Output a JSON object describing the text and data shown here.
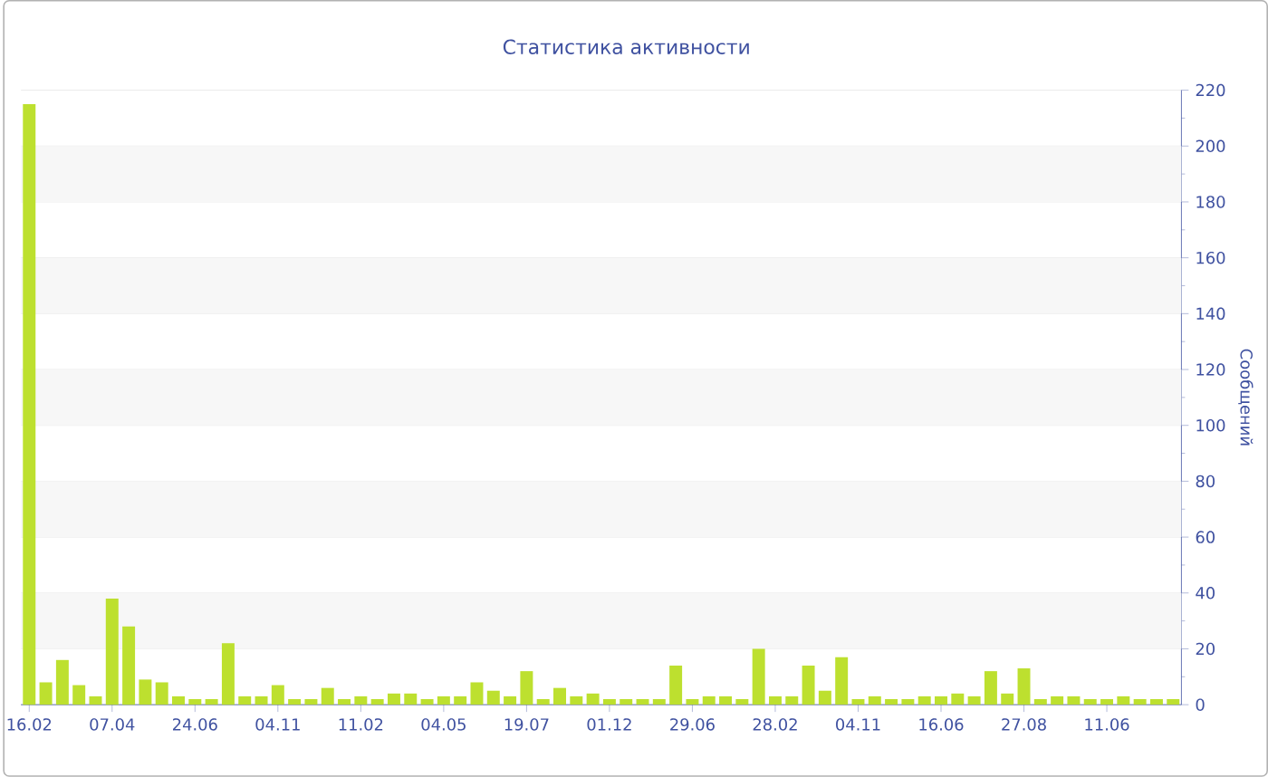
{
  "chart_data": {
    "type": "bar",
    "title": "Статистика активности",
    "ylabel": "Сообщений",
    "categories": [
      "16.02",
      null,
      null,
      null,
      null,
      "07.04",
      null,
      null,
      null,
      null,
      "24.06",
      null,
      null,
      null,
      null,
      "04.11",
      null,
      null,
      null,
      null,
      "11.02",
      null,
      null,
      null,
      null,
      "04.05",
      null,
      null,
      null,
      null,
      "19.07",
      null,
      null,
      null,
      null,
      "01.12",
      null,
      null,
      null,
      null,
      "29.06",
      null,
      null,
      null,
      null,
      "28.02",
      null,
      null,
      null,
      null,
      "04.11",
      null,
      null,
      null,
      null,
      "16.06",
      null,
      null,
      null,
      null,
      "27.08",
      null,
      null,
      null,
      null,
      "11.06",
      null,
      null,
      null,
      null
    ],
    "values": [
      215,
      8,
      16,
      7,
      3,
      38,
      28,
      9,
      8,
      3,
      2,
      2,
      22,
      3,
      3,
      7,
      2,
      2,
      6,
      2,
      3,
      2,
      4,
      4,
      2,
      3,
      3,
      8,
      5,
      3,
      12,
      2,
      6,
      3,
      4,
      2,
      2,
      2,
      2,
      14,
      2,
      3,
      3,
      2,
      20,
      3,
      3,
      14,
      5,
      17,
      2,
      3,
      2,
      2,
      3,
      3,
      4,
      3,
      12,
      4,
      13,
      2,
      3,
      3,
      2,
      2,
      3,
      2,
      2,
      2
    ],
    "color": "#bde02f",
    "ylim": [
      0,
      220
    ],
    "yticks": [
      0,
      20,
      40,
      60,
      80,
      100,
      120,
      140,
      160,
      180,
      200,
      220
    ],
    "grid": "y"
  }
}
